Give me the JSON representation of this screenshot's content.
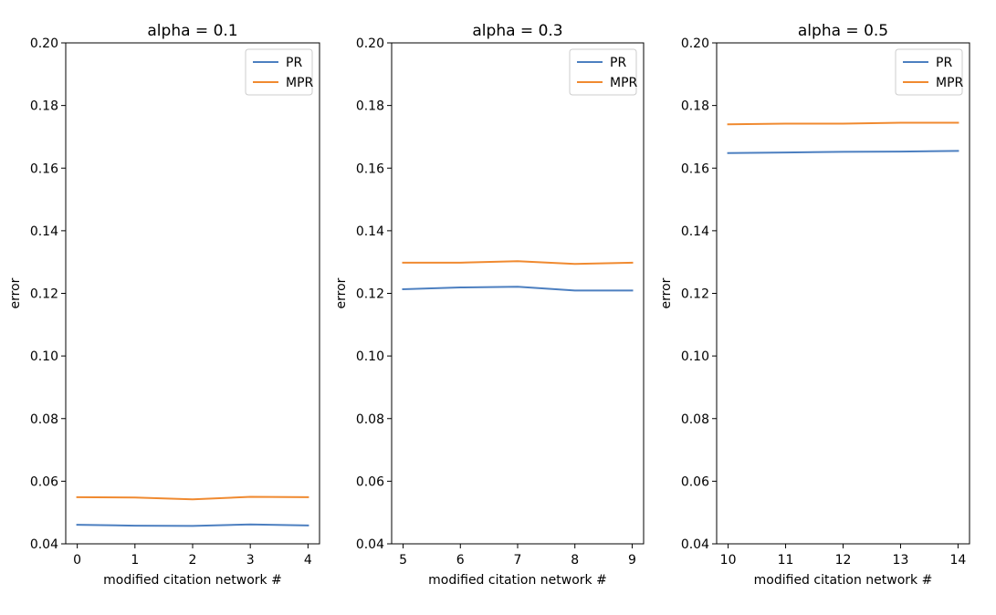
{
  "colors": {
    "PR": "#4c7fc0",
    "MPR": "#f08a30"
  },
  "chart_data": [
    {
      "type": "line",
      "title": "alpha = 0.1",
      "xlabel": "modified citation network #",
      "ylabel": "error",
      "x": [
        0,
        1,
        2,
        3,
        4
      ],
      "xlim": [
        -0.2,
        4.2
      ],
      "ylim": [
        0.04,
        0.2
      ],
      "xticks": [
        0,
        1,
        2,
        3,
        4
      ],
      "yticks": [
        "0.04",
        "0.06",
        "0.08",
        "0.10",
        "0.12",
        "0.14",
        "0.16",
        "0.18",
        "0.20"
      ],
      "legend_position": "top-right",
      "grid": false,
      "series": [
        {
          "name": "PR",
          "values": [
            0.0461,
            0.0458,
            0.0457,
            0.0462,
            0.0459
          ]
        },
        {
          "name": "MPR",
          "values": [
            0.0549,
            0.0548,
            0.0542,
            0.055,
            0.0549
          ]
        }
      ]
    },
    {
      "type": "line",
      "title": "alpha = 0.3",
      "xlabel": "modified citation network #",
      "ylabel": "error",
      "x": [
        5,
        6,
        7,
        8,
        9
      ],
      "xlim": [
        4.8,
        9.2
      ],
      "ylim": [
        0.04,
        0.2
      ],
      "xticks": [
        5,
        6,
        7,
        8,
        9
      ],
      "yticks": [
        "0.04",
        "0.06",
        "0.08",
        "0.10",
        "0.12",
        "0.14",
        "0.16",
        "0.18",
        "0.20"
      ],
      "legend_position": "top-right",
      "grid": false,
      "series": [
        {
          "name": "PR",
          "values": [
            0.1213,
            0.1219,
            0.1221,
            0.1209,
            0.1209
          ]
        },
        {
          "name": "MPR",
          "values": [
            0.1298,
            0.1298,
            0.1303,
            0.1294,
            0.1298
          ]
        }
      ]
    },
    {
      "type": "line",
      "title": "alpha = 0.5",
      "xlabel": "modified citation network #",
      "ylabel": "error",
      "x": [
        10,
        11,
        12,
        13,
        14
      ],
      "xlim": [
        9.8,
        14.2
      ],
      "ylim": [
        0.04,
        0.2
      ],
      "xticks": [
        10,
        11,
        12,
        13,
        14
      ],
      "yticks": [
        "0.04",
        "0.06",
        "0.08",
        "0.10",
        "0.12",
        "0.14",
        "0.16",
        "0.18",
        "0.20"
      ],
      "legend_position": "top-right",
      "grid": false,
      "series": [
        {
          "name": "PR",
          "values": [
            0.1648,
            0.165,
            0.1652,
            0.1653,
            0.1655
          ]
        },
        {
          "name": "MPR",
          "values": [
            0.174,
            0.1742,
            0.1742,
            0.1745,
            0.1745
          ]
        }
      ]
    }
  ]
}
